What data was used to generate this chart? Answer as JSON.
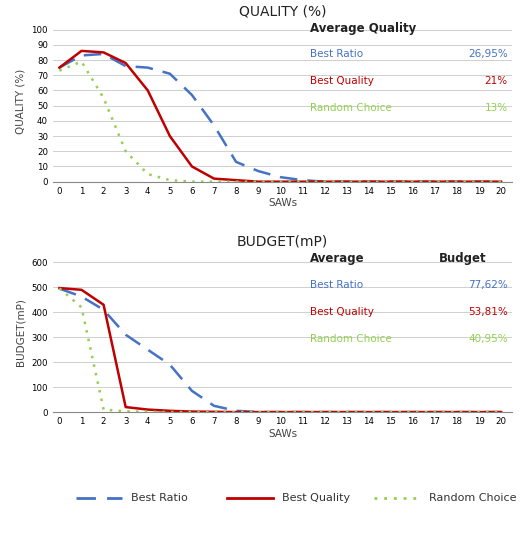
{
  "quality_title": "QUALITY (%)",
  "budget_title": "BUDGET(mP)",
  "xlabel": "SAWs",
  "ylabel_quality": "QUALITY (%)",
  "ylabel_budget": "BUDGET(mP)",
  "x": [
    0,
    1,
    2,
    3,
    4,
    5,
    6,
    7,
    8,
    9,
    10,
    11,
    12,
    13,
    14,
    15,
    16,
    17,
    18,
    19,
    20
  ],
  "quality_best_ratio": [
    75,
    83,
    84,
    76,
    75,
    71,
    57,
    37,
    13,
    7,
    3,
    1,
    0,
    0,
    0,
    0,
    0,
    0,
    0,
    0,
    0
  ],
  "quality_best_quality": [
    75,
    86,
    85,
    78,
    60,
    30,
    10,
    2,
    1,
    0,
    0,
    0,
    0,
    0,
    0,
    0,
    0,
    0,
    0,
    0,
    0
  ],
  "quality_random_choice": [
    73,
    79,
    55,
    20,
    5,
    1,
    0,
    0,
    0,
    0,
    0,
    0,
    0,
    0,
    0,
    0,
    0,
    0,
    0,
    0,
    0
  ],
  "budget_best_ratio": [
    495,
    463,
    410,
    310,
    250,
    190,
    85,
    25,
    5,
    0,
    0,
    0,
    0,
    0,
    0,
    0,
    0,
    0,
    0,
    0,
    0
  ],
  "budget_best_quality": [
    497,
    490,
    430,
    20,
    10,
    5,
    2,
    1,
    0,
    0,
    0,
    0,
    0,
    0,
    0,
    0,
    0,
    0,
    0,
    0,
    0
  ],
  "budget_random_choice": [
    496,
    420,
    10,
    3,
    1,
    0,
    0,
    0,
    0,
    0,
    0,
    0,
    0,
    0,
    0,
    0,
    0,
    0,
    0,
    0,
    0
  ],
  "color_best_ratio": "#4472C4",
  "color_best_quality": "#C00000",
  "color_random_choice": "#92D050",
  "legend_quality_title": "Average Quality",
  "legend_budget_title1": "Average",
  "legend_budget_title2": "Budget",
  "legend_best_ratio_q": "26,95%",
  "legend_best_quality_q": "21%",
  "legend_random_choice_q": "13%",
  "legend_best_ratio_b": "77,62%",
  "legend_best_quality_b": "53,81%",
  "legend_random_choice_b": "40,95%",
  "xticks": [
    0,
    1,
    2,
    3,
    4,
    5,
    6,
    7,
    8,
    9,
    10,
    11,
    12,
    13,
    14,
    15,
    16,
    17,
    18,
    19,
    20
  ],
  "quality_yticks": [
    0,
    10,
    20,
    30,
    40,
    50,
    60,
    70,
    80,
    90,
    100
  ],
  "budget_yticks": [
    0,
    100,
    200,
    300,
    400,
    500,
    600
  ],
  "quality_ylim": [
    0,
    105
  ],
  "budget_ylim": [
    0,
    640
  ],
  "background_color": "#FFFFFF",
  "grid_color": "#C8C8C8"
}
